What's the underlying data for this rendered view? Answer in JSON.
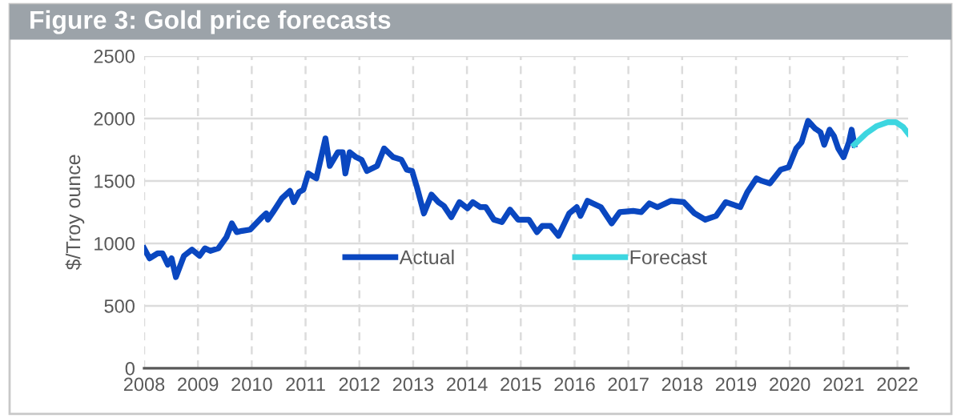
{
  "chart_data": {
    "type": "line",
    "title": "Figure 3: Gold price forecasts",
    "ylabel": "$/Troy ounce",
    "xlim": [
      2008,
      2022.2
    ],
    "xticks": [
      2008,
      2009,
      2010,
      2011,
      2012,
      2013,
      2014,
      2015,
      2016,
      2017,
      2018,
      2019,
      2020,
      2021,
      2022
    ],
    "ylim": [
      0,
      2500
    ],
    "yticks": [
      0,
      500,
      1000,
      1500,
      2000,
      2500
    ],
    "grid": true,
    "legend": "center",
    "line_style": "solid",
    "marker": "none",
    "series": [
      {
        "name": "Actual",
        "color": "#0a47c0",
        "x": [
          2008.0,
          2008.1,
          2008.25,
          2008.34,
          2008.44,
          2008.51,
          2008.59,
          2008.74,
          2008.89,
          2009.03,
          2009.13,
          2009.23,
          2009.38,
          2009.53,
          2009.63,
          2009.72,
          2009.82,
          2009.97,
          2010.17,
          2010.27,
          2010.3,
          2010.41,
          2010.56,
          2010.71,
          2010.78,
          2010.88,
          2010.96,
          2011.05,
          2011.2,
          2011.37,
          2011.45,
          2011.6,
          2011.69,
          2011.74,
          2011.82,
          2011.94,
          2012.04,
          2012.14,
          2012.33,
          2012.46,
          2012.63,
          2012.78,
          2012.88,
          2012.98,
          2013.07,
          2013.2,
          2013.34,
          2013.47,
          2013.57,
          2013.71,
          2013.86,
          2014.01,
          2014.11,
          2014.25,
          2014.35,
          2014.5,
          2014.65,
          2014.8,
          2014.95,
          2015.15,
          2015.3,
          2015.4,
          2015.55,
          2015.7,
          2015.9,
          2016.04,
          2016.11,
          2016.24,
          2016.34,
          2016.49,
          2016.69,
          2016.84,
          2017.09,
          2017.24,
          2017.39,
          2017.54,
          2017.79,
          2018.03,
          2018.23,
          2018.43,
          2018.63,
          2018.81,
          2019.08,
          2019.21,
          2019.38,
          2019.48,
          2019.63,
          2019.83,
          2019.98,
          2020.12,
          2020.22,
          2020.34,
          2020.47,
          2020.57,
          2020.64,
          2020.74,
          2020.82,
          2020.9,
          2021.0,
          2021.1,
          2021.15,
          2021.2
        ],
        "values": [
          960,
          880,
          920,
          920,
          830,
          880,
          730,
          900,
          950,
          900,
          960,
          940,
          960,
          1050,
          1160,
          1090,
          1100,
          1110,
          1200,
          1240,
          1190,
          1260,
          1360,
          1420,
          1330,
          1410,
          1430,
          1560,
          1520,
          1840,
          1620,
          1730,
          1730,
          1560,
          1730,
          1690,
          1670,
          1580,
          1620,
          1760,
          1690,
          1670,
          1590,
          1580,
          1450,
          1240,
          1390,
          1330,
          1300,
          1210,
          1330,
          1280,
          1330,
          1290,
          1290,
          1190,
          1170,
          1270,
          1190,
          1190,
          1090,
          1140,
          1140,
          1060,
          1240,
          1290,
          1220,
          1340,
          1320,
          1290,
          1160,
          1250,
          1260,
          1250,
          1320,
          1290,
          1340,
          1330,
          1240,
          1190,
          1220,
          1330,
          1290,
          1410,
          1520,
          1500,
          1480,
          1590,
          1610,
          1760,
          1810,
          1980,
          1920,
          1890,
          1790,
          1910,
          1860,
          1760,
          1690,
          1810,
          1910,
          1790
        ]
      },
      {
        "name": "Forecast",
        "color": "#3dd6e0",
        "x": [
          2021.2,
          2021.42,
          2021.62,
          2021.82,
          2021.97,
          2022.11,
          2022.2
        ],
        "values": [
          1790,
          1880,
          1940,
          1970,
          1970,
          1930,
          1880
        ]
      }
    ]
  }
}
